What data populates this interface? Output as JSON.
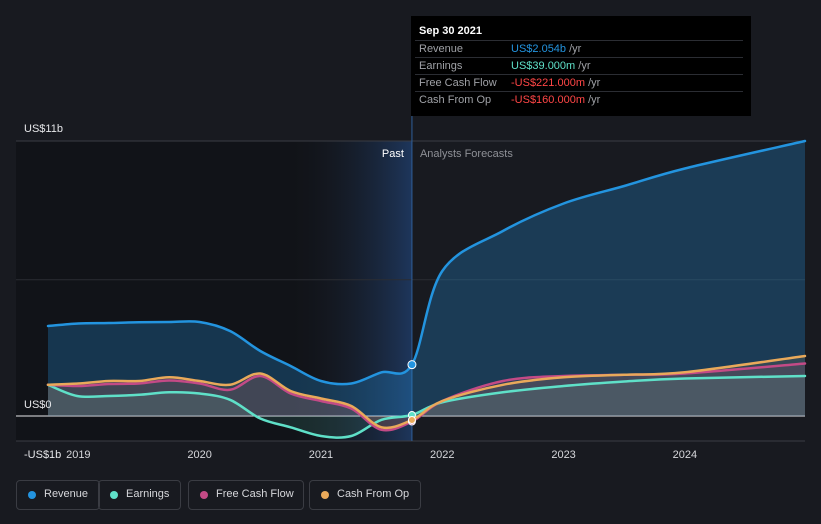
{
  "chart_data": {
    "type": "area",
    "y_axis": {
      "unit_labels": [
        "US$11b",
        "US$0",
        "-US$1b"
      ],
      "ylim": [
        -1,
        11
      ]
    },
    "x_axis": {
      "tick_labels": [
        "2019",
        "2020",
        "2021",
        "2022",
        "2023",
        "2024"
      ],
      "xlim": [
        2018.75,
        2024.99
      ]
    },
    "regions": {
      "past_label": "Past",
      "forecast_label": "Analysts Forecasts",
      "divider_x": 2021.75
    },
    "series": [
      {
        "name": "Revenue",
        "color": "#2394df",
        "values": [
          [
            2018.75,
            3.6
          ],
          [
            2019.0,
            3.7
          ],
          [
            2019.25,
            3.72
          ],
          [
            2019.5,
            3.75
          ],
          [
            2019.75,
            3.76
          ],
          [
            2020.0,
            3.76
          ],
          [
            2020.25,
            3.4
          ],
          [
            2020.5,
            2.6
          ],
          [
            2020.75,
            2.0
          ],
          [
            2021.0,
            1.4
          ],
          [
            2021.25,
            1.3
          ],
          [
            2021.5,
            1.75
          ],
          [
            2021.75,
            2.054
          ],
          [
            2022.0,
            5.8
          ],
          [
            2022.5,
            7.4
          ],
          [
            2023.0,
            8.5
          ],
          [
            2023.5,
            9.2
          ],
          [
            2024.0,
            9.9
          ],
          [
            2024.99,
            11.0
          ]
        ]
      },
      {
        "name": "Earnings",
        "color": "#5fe0c8",
        "values": [
          [
            2018.75,
            1.25
          ],
          [
            2018.99,
            0.8
          ],
          [
            2019.25,
            0.8
          ],
          [
            2019.5,
            0.85
          ],
          [
            2019.75,
            0.95
          ],
          [
            2020.0,
            0.9
          ],
          [
            2020.25,
            0.65
          ],
          [
            2020.5,
            -0.1
          ],
          [
            2020.75,
            -0.45
          ],
          [
            2021.0,
            -0.8
          ],
          [
            2021.25,
            -0.8
          ],
          [
            2021.5,
            -0.15
          ],
          [
            2021.75,
            0.039
          ],
          [
            2022.0,
            0.55
          ],
          [
            2022.5,
            0.95
          ],
          [
            2023.0,
            1.2
          ],
          [
            2023.5,
            1.38
          ],
          [
            2024.0,
            1.5
          ],
          [
            2024.99,
            1.6
          ]
        ]
      },
      {
        "name": "Free Cash Flow",
        "color": "#c34a86",
        "values": [
          [
            2018.75,
            1.25
          ],
          [
            2019.0,
            1.2
          ],
          [
            2019.25,
            1.28
          ],
          [
            2019.5,
            1.3
          ],
          [
            2019.75,
            1.42
          ],
          [
            2020.0,
            1.3
          ],
          [
            2020.25,
            1.05
          ],
          [
            2020.5,
            1.6
          ],
          [
            2020.75,
            0.9
          ],
          [
            2021.0,
            0.6
          ],
          [
            2021.25,
            0.3
          ],
          [
            2021.5,
            -0.55
          ],
          [
            2021.75,
            -0.221
          ],
          [
            2022.0,
            0.6
          ],
          [
            2022.5,
            1.4
          ],
          [
            2023.0,
            1.6
          ],
          [
            2023.5,
            1.65
          ],
          [
            2024.0,
            1.7
          ],
          [
            2024.99,
            2.1
          ]
        ]
      },
      {
        "name": "Cash From Op",
        "color": "#e9a95a",
        "values": [
          [
            2018.75,
            1.25
          ],
          [
            2019.0,
            1.3
          ],
          [
            2019.25,
            1.4
          ],
          [
            2019.5,
            1.4
          ],
          [
            2019.75,
            1.55
          ],
          [
            2020.0,
            1.4
          ],
          [
            2020.25,
            1.25
          ],
          [
            2020.5,
            1.7
          ],
          [
            2020.75,
            1.0
          ],
          [
            2021.0,
            0.7
          ],
          [
            2021.25,
            0.4
          ],
          [
            2021.5,
            -0.45
          ],
          [
            2021.75,
            -0.16
          ],
          [
            2022.0,
            0.6
          ],
          [
            2022.5,
            1.25
          ],
          [
            2023.0,
            1.55
          ],
          [
            2023.5,
            1.65
          ],
          [
            2024.0,
            1.75
          ],
          [
            2024.99,
            2.4
          ]
        ]
      }
    ],
    "highlight_point": [
      2021.75,
      2.054
    ]
  },
  "tooltip": {
    "date": "Sep 30 2021",
    "rows": [
      {
        "label": "Revenue",
        "value": "US$2.054b",
        "unit": "/yr",
        "color": "#2394df"
      },
      {
        "label": "Earnings",
        "value": "US$39.000m",
        "unit": "/yr",
        "color": "#5fe0c8"
      },
      {
        "label": "Free Cash Flow",
        "value": "-US$221.000m",
        "unit": "/yr",
        "color": "#ff4646"
      },
      {
        "label": "Cash From Op",
        "value": "-US$160.000m",
        "unit": "/yr",
        "color": "#ff4646"
      }
    ]
  },
  "legend": [
    {
      "label": "Revenue",
      "color": "#2394df"
    },
    {
      "label": "Earnings",
      "color": "#5fe0c8"
    },
    {
      "label": "Free Cash Flow",
      "color": "#c34a86"
    },
    {
      "label": "Cash From Op",
      "color": "#e9a95a"
    }
  ]
}
